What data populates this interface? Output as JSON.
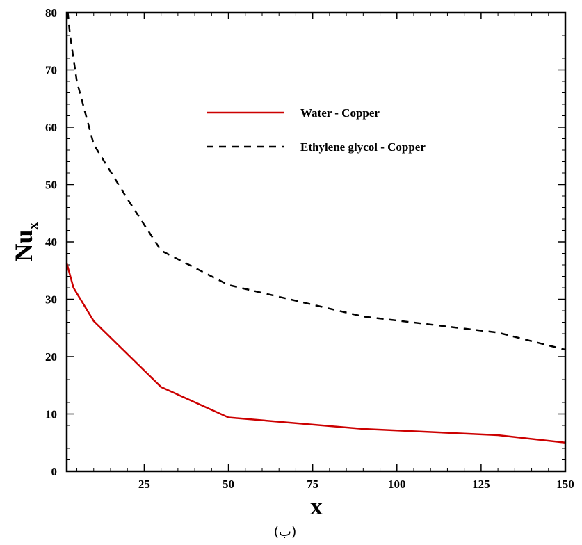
{
  "chart_data": {
    "type": "line",
    "xlabel": "x",
    "ylabel": "Nu",
    "ylabel_subscript": "x",
    "caption": "(ب)",
    "xlim": [
      2,
      150
    ],
    "ylim": [
      0,
      80
    ],
    "xticks": [
      25,
      50,
      75,
      100,
      125,
      150
    ],
    "yticks": [
      0,
      10,
      20,
      30,
      40,
      50,
      60,
      70,
      80
    ],
    "grid": false,
    "legend_position": "upper-right",
    "series": [
      {
        "name": "Water - Copper",
        "color": "#cc0000",
        "dash": "solid",
        "x": [
          2,
          4,
          10,
          30,
          50,
          90,
          130,
          150
        ],
        "y": [
          36.3,
          32,
          26.2,
          14.7,
          9.4,
          7.4,
          6.3,
          5.0
        ]
      },
      {
        "name": "Ethylene glycol - Copper",
        "color": "#000000",
        "dash": "dashed",
        "x": [
          2.3,
          3,
          5,
          10,
          20,
          30,
          50,
          90,
          130,
          150
        ],
        "y": [
          80,
          76,
          68,
          57,
          47.5,
          38.5,
          32.5,
          27,
          24.2,
          21.2
        ]
      }
    ]
  }
}
